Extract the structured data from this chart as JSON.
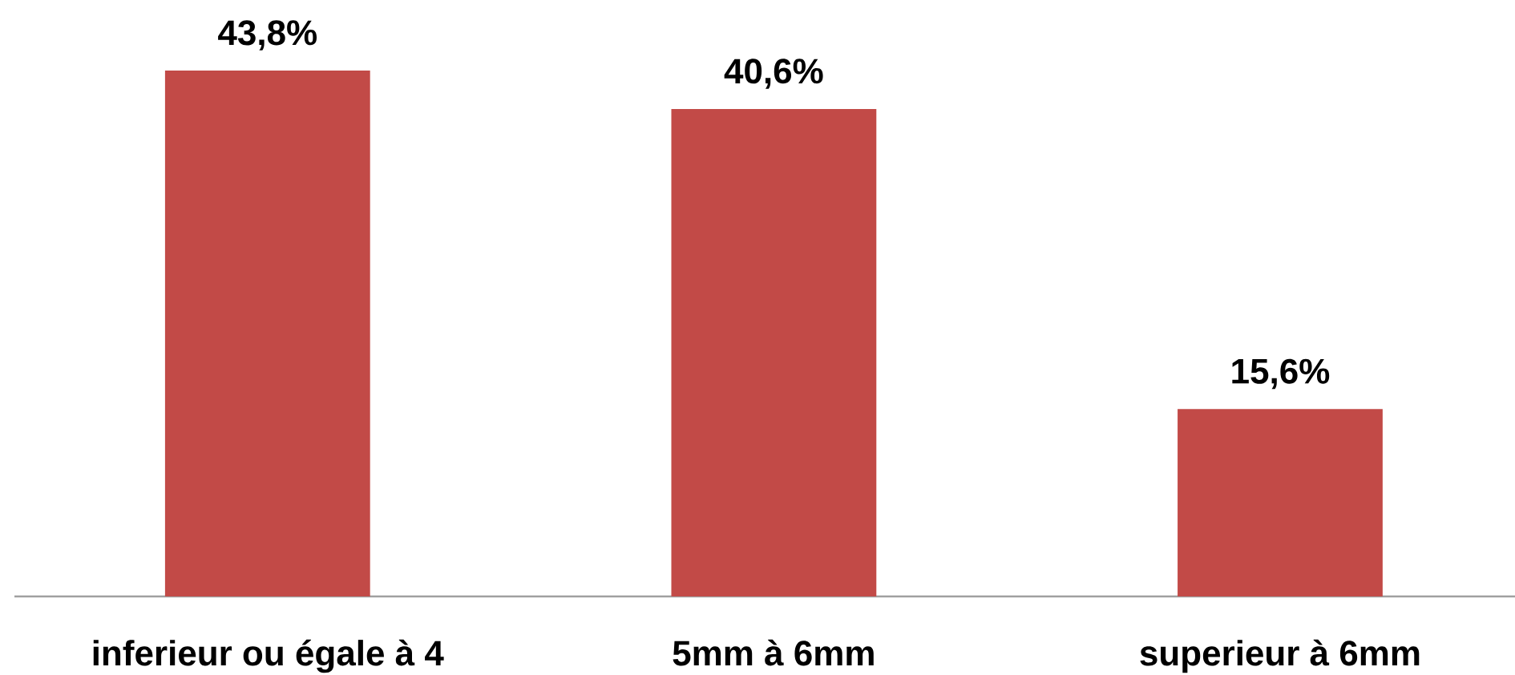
{
  "chart_data": {
    "type": "bar",
    "categories": [
      "inferieur ou égale à 4",
      "5mm à 6mm",
      "superieur à 6mm"
    ],
    "values": [
      43.8,
      40.6,
      15.6
    ],
    "color": "#c24a47",
    "value_labels": [
      "43,8%",
      "40,6%",
      "15,6%"
    ],
    "tick_labels": "x"
  }
}
